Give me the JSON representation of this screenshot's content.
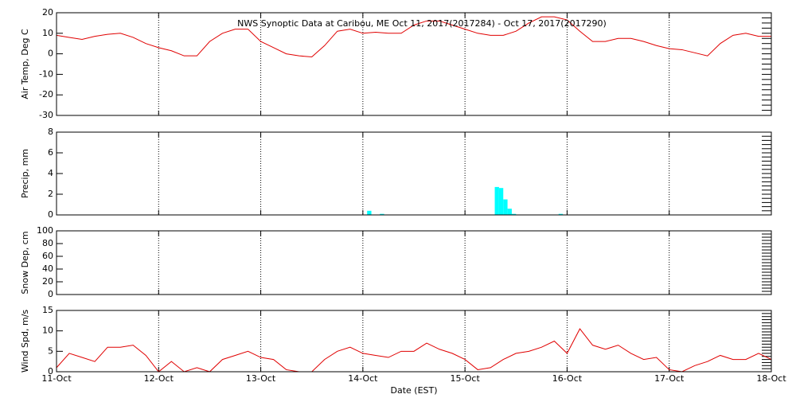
{
  "title": "NWS Synoptic Data at Caribou, ME   Oct 11, 2017(2017284) - Oct 17, 2017(2017290)",
  "xaxis": {
    "label": "Date (EST)",
    "xlim": [
      0,
      168
    ],
    "xticks": [
      {
        "value": 0,
        "label": "11-Oct"
      },
      {
        "value": 24,
        "label": "12-Oct"
      },
      {
        "value": 48,
        "label": "13-Oct"
      },
      {
        "value": 72,
        "label": "14-Oct"
      },
      {
        "value": 96,
        "label": "15-Oct"
      },
      {
        "value": 120,
        "label": "16-Oct"
      },
      {
        "value": 144,
        "label": "17-Oct"
      },
      {
        "value": 168,
        "label": "18-Oct"
      }
    ]
  },
  "chart_data": [
    {
      "type": "line",
      "ylabel": "Air Temp, Deg C",
      "ylim": [
        -30,
        20
      ],
      "yticks": [
        -30,
        -20,
        -10,
        0,
        10,
        20
      ],
      "color": "#e00000",
      "grid": "x",
      "x": [
        0,
        3,
        6,
        9,
        12,
        15,
        18,
        21,
        24,
        27,
        30,
        33,
        36,
        39,
        42,
        45,
        48,
        51,
        54,
        57,
        60,
        63,
        66,
        69,
        72,
        75,
        78,
        81,
        84,
        87,
        90,
        93,
        96,
        99,
        102,
        105,
        108,
        111,
        114,
        117,
        120,
        123,
        126,
        129,
        132,
        135,
        138,
        141,
        144,
        147,
        150,
        153,
        156,
        159,
        162,
        165,
        168
      ],
      "values": [
        9,
        8,
        7,
        8.5,
        9.5,
        10,
        8,
        5,
        3,
        1.5,
        -1,
        -1,
        6,
        10,
        12,
        12,
        6,
        3,
        0,
        -1,
        -1.5,
        4,
        11,
        12,
        10,
        10.5,
        10,
        10,
        14,
        16,
        16,
        14,
        12,
        10,
        9,
        9,
        11,
        15,
        18,
        18,
        16.5,
        11,
        6,
        6,
        7.5,
        7.5,
        6,
        4,
        2.5,
        2,
        0.5,
        -1,
        5,
        9,
        10,
        8.5,
        8.5
      ]
    },
    {
      "type": "bar",
      "ylabel": "Precip, mm",
      "ylim": [
        0,
        8
      ],
      "yticks": [
        0,
        2,
        4,
        6,
        8
      ],
      "color": "#00ffff",
      "grid": "x",
      "x": [
        73,
        76,
        103,
        104,
        105,
        106,
        107,
        118
      ],
      "values": [
        0.4,
        0.1,
        2.7,
        2.6,
        1.5,
        0.6,
        0.1,
        0.1
      ]
    },
    {
      "type": "empty",
      "ylabel": "Snow Dep, cm",
      "ylim": [
        0,
        100
      ],
      "yticks": [
        0,
        20,
        40,
        60,
        80,
        100
      ],
      "grid": "x"
    },
    {
      "type": "line",
      "ylabel": "Wind Spd, m/s",
      "ylim": [
        0,
        15
      ],
      "yticks": [
        0,
        5,
        10,
        15
      ],
      "color": "#e00000",
      "grid": "x",
      "x": [
        0,
        3,
        6,
        9,
        12,
        15,
        18,
        21,
        24,
        27,
        30,
        33,
        36,
        39,
        42,
        45,
        48,
        51,
        54,
        57,
        60,
        63,
        66,
        69,
        72,
        75,
        78,
        81,
        84,
        87,
        90,
        93,
        96,
        99,
        102,
        105,
        108,
        111,
        114,
        117,
        120,
        123,
        126,
        129,
        132,
        135,
        138,
        141,
        144,
        147,
        150,
        153,
        156,
        159,
        162,
        165,
        168
      ],
      "values": [
        1,
        4.5,
        3.5,
        2.5,
        6,
        6,
        6.5,
        4,
        0,
        2.5,
        0,
        1,
        0,
        3,
        4,
        5,
        3.5,
        3,
        0.5,
        0,
        0,
        3,
        5,
        6,
        4.5,
        4,
        3.5,
        5,
        5,
        7,
        5.5,
        4.5,
        3,
        0.5,
        1,
        3,
        4.5,
        5,
        6,
        7.5,
        4.5,
        10.5,
        6.5,
        5.5,
        6.5,
        4.5,
        3,
        3.5,
        0.5,
        0,
        1.5,
        2.5,
        4,
        3,
        3,
        4.5,
        3
      ]
    }
  ]
}
